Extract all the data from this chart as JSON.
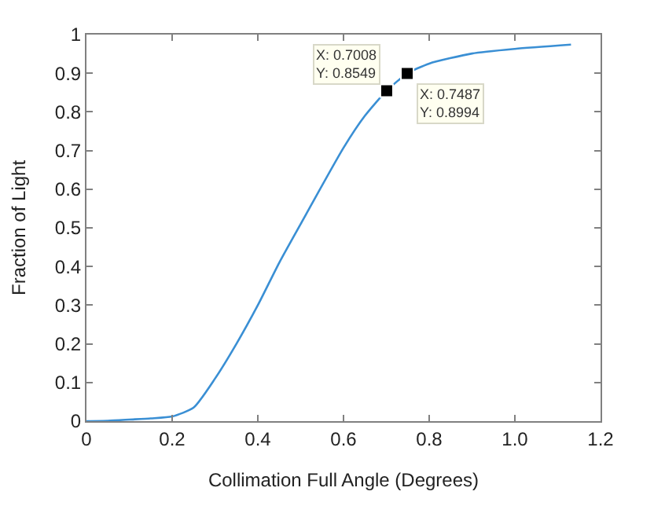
{
  "chart_data": {
    "type": "line",
    "xlabel": "Collimation Full Angle (Degrees)",
    "ylabel": "Fraction of Light",
    "x": [
      0,
      0.05,
      0.1,
      0.15,
      0.2,
      0.25,
      0.3,
      0.35,
      0.4,
      0.45,
      0.5,
      0.6,
      0.65,
      0.7008,
      0.7487,
      0.8,
      0.9,
      1.0,
      1.131
    ],
    "series": [
      {
        "color": "#3a8fd4",
        "values": [
          0,
          0.001,
          0.004,
          0.007,
          0.012,
          0.035,
          0.11,
          0.2,
          0.3,
          0.41,
          0.51,
          0.707,
          0.79,
          0.8549,
          0.8994,
          0.925,
          0.951,
          0.963,
          0.974
        ]
      },
      {
        "type": "scatter",
        "color": "#000000",
        "marker": "square",
        "x": [
          0.7008,
          0.7487
        ],
        "values": [
          0.8549,
          0.8994
        ]
      }
    ],
    "xlim": [
      0,
      1.2
    ],
    "ylim": [
      0,
      1
    ],
    "xticks": [
      0,
      0.2,
      0.4,
      0.6,
      0.8,
      {
        "value": 1,
        "label": "1.0"
      },
      1.2
    ],
    "yticks": [
      0,
      0.1,
      0.2,
      0.3,
      0.4,
      0.5,
      0.6,
      0.7,
      0.8,
      0.9,
      1
    ],
    "annotations": [
      {
        "text": "X: 0.7008\nY: 0.8549",
        "x": 0.7008,
        "y": 0.8549
      },
      {
        "text": "X: 0.7487\nY: 0.8994",
        "x": 0.7487,
        "y": 0.8994
      }
    ]
  }
}
